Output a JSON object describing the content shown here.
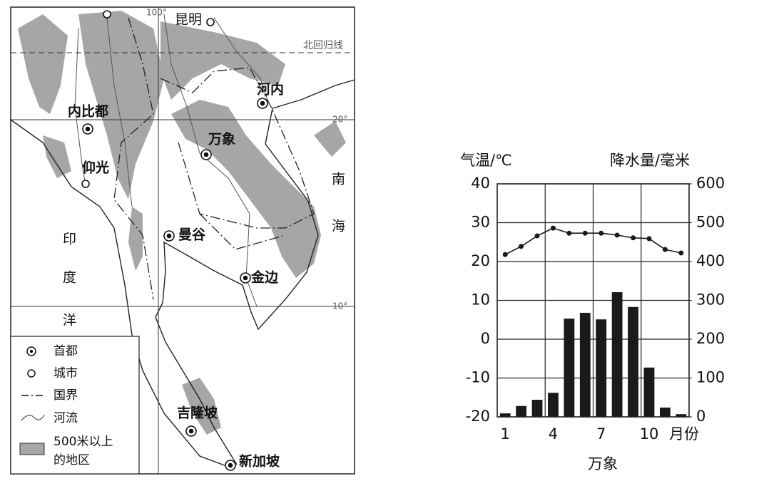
{
  "map": {
    "graticule": {
      "lon100": "100°",
      "lat20": "20°",
      "lat10": "10°",
      "tropic": "北回归线"
    },
    "places": {
      "kunming": "昆明",
      "hanoi": "河内",
      "naypyidaw": "内比都",
      "vientiane": "万象",
      "yangon": "仰光",
      "bangkok": "曼谷",
      "phnompenh": "金边",
      "kualalumpur": "吉隆坡",
      "singapore": "新加坡"
    },
    "seas": {
      "south_china": [
        "南",
        "海"
      ],
      "indian": [
        "印",
        "度",
        "洋"
      ]
    }
  },
  "legend": [
    "首都",
    "城市",
    "国界",
    "河流",
    "500米以上",
    "的地区"
  ],
  "chart_data": {
    "type": "combo",
    "title": "万象",
    "ylabel": "气温/℃",
    "y2label": "降水量/毫米",
    "xlabel": "月份",
    "categories": [
      "1",
      null,
      null,
      "4",
      null,
      null,
      "7",
      null,
      null,
      "10",
      null,
      null
    ],
    "series": [
      {
        "type": "bar",
        "axis": "y2",
        "color": "#1a1a1a",
        "values": [
          9,
          28,
          44,
          62,
          253,
          268,
          251,
          321,
          283,
          127,
          24,
          7
        ]
      },
      {
        "type": "line",
        "axis": "y",
        "color": "#1a1a1a",
        "values": [
          21.8,
          23.9,
          26.6,
          28.6,
          27.3,
          27.3,
          27.3,
          26.8,
          26.1,
          25.9,
          23.1,
          22.2
        ]
      }
    ],
    "ylim": [
      -20,
      40
    ],
    "yticks": [
      -20,
      -10,
      0,
      10,
      20,
      30,
      40
    ],
    "y2lim": [
      0,
      600
    ],
    "y2ticks": [
      0,
      100,
      200,
      300,
      400,
      500,
      600
    ],
    "grid": true
  }
}
